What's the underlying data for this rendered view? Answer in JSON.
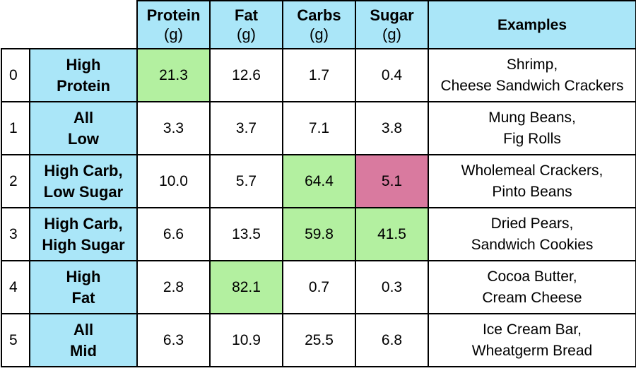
{
  "columns": [
    {
      "name": "Protein",
      "unit": "(g)"
    },
    {
      "name": "Fat",
      "unit": "(g)"
    },
    {
      "name": "Carbs",
      "unit": "(g)"
    },
    {
      "name": "Sugar",
      "unit": "(g)"
    },
    {
      "name": "Examples",
      "unit": ""
    }
  ],
  "rows": [
    {
      "index": "0",
      "label": [
        "High",
        "Protein"
      ],
      "values": [
        "21.3",
        "12.6",
        "1.7",
        "0.4"
      ],
      "highlight": [
        "green",
        "",
        "",
        ""
      ],
      "examples": [
        "Shrimp,",
        "Cheese Sandwich Crackers"
      ]
    },
    {
      "index": "1",
      "label": [
        "All",
        "Low"
      ],
      "values": [
        "3.3",
        "3.7",
        "7.1",
        "3.8"
      ],
      "highlight": [
        "",
        "",
        "",
        ""
      ],
      "examples": [
        "Mung Beans,",
        "Fig Rolls"
      ]
    },
    {
      "index": "2",
      "label": [
        "High Carb,",
        "Low Sugar"
      ],
      "values": [
        "10.0",
        "5.7",
        "64.4",
        "5.1"
      ],
      "highlight": [
        "",
        "",
        "green",
        "pink"
      ],
      "examples": [
        "Wholemeal Crackers,",
        "Pinto Beans"
      ]
    },
    {
      "index": "3",
      "label": [
        "High Carb,",
        "High Sugar"
      ],
      "values": [
        "6.6",
        "13.5",
        "59.8",
        "41.5"
      ],
      "highlight": [
        "",
        "",
        "green",
        "green"
      ],
      "examples": [
        "Dried Pears,",
        "Sandwich Cookies"
      ]
    },
    {
      "index": "4",
      "label": [
        "High",
        "Fat"
      ],
      "values": [
        "2.8",
        "82.1",
        "0.7",
        "0.3"
      ],
      "highlight": [
        "",
        "green",
        "",
        ""
      ],
      "examples": [
        "Cocoa Butter,",
        "Cream Cheese"
      ]
    },
    {
      "index": "5",
      "label": [
        "All",
        "Mid"
      ],
      "values": [
        "6.3",
        "10.9",
        "25.5",
        "6.8"
      ],
      "highlight": [
        "",
        "",
        "",
        ""
      ],
      "examples": [
        "Ice Cream Bar,",
        "Wheatgerm Bread"
      ]
    }
  ],
  "colors": {
    "header": "#aae6f8",
    "high": "#b3f0a0",
    "low": "#d97a9f"
  }
}
